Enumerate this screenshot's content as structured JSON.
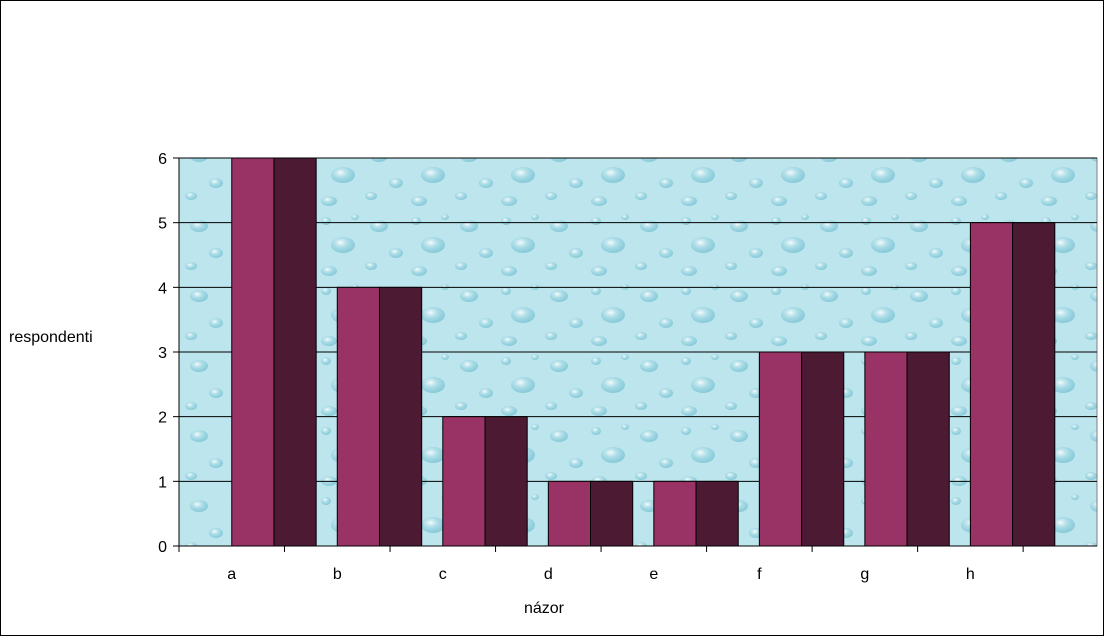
{
  "chart_data": {
    "type": "bar",
    "categories": [
      "a",
      "b",
      "c",
      "d",
      "e",
      "f",
      "g",
      "h"
    ],
    "series": [
      {
        "values": [
          6,
          4,
          2,
          1,
          1,
          3,
          3,
          5
        ]
      },
      {
        "values": [
          6,
          4,
          2,
          1,
          1,
          3,
          3,
          5
        ]
      }
    ],
    "xlabel": "názor",
    "ylabel": "respondenti",
    "ylim": [
      0,
      6
    ],
    "yticks": [
      0,
      1,
      2,
      3,
      4,
      5,
      6
    ],
    "grid": true,
    "colors": {
      "series": [
        "#993366",
        "#4d1a33"
      ],
      "plot_background": "#bfe6ef",
      "gridline": "#000000"
    }
  }
}
